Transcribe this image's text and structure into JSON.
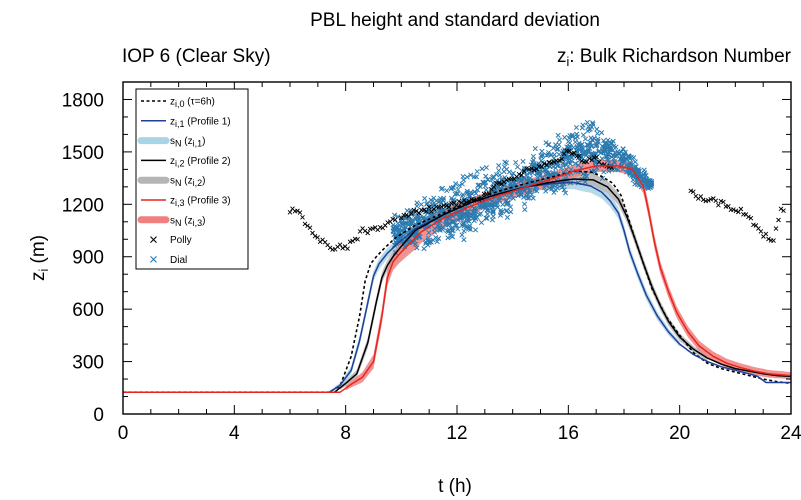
{
  "chart_data": {
    "type": "line",
    "title": "PBL height and standard deviation",
    "subtitle_left": "IOP 6 (Clear Sky)",
    "subtitle_right": {
      "symbol": "z",
      "sub": "i",
      "text": ": Bulk Richardson Number"
    },
    "xlabel": "t (h)",
    "ylabel": {
      "symbol": "z",
      "sub": "i",
      "unit": "(m)"
    },
    "xlim": [
      0,
      24
    ],
    "ylim": [
      0,
      1900
    ],
    "xticks": [
      0,
      4,
      8,
      12,
      16,
      20,
      24
    ],
    "yticks": [
      0,
      300,
      600,
      900,
      1200,
      1500,
      1800
    ],
    "legend_position": "top-left",
    "legend": [
      {
        "key": "zi0",
        "style": "dashed",
        "color": "#000000",
        "main": "z",
        "sub": "i,0",
        "paren": "(τ=6h)"
      },
      {
        "key": "zi1",
        "style": "line",
        "color": "#1f3f99",
        "main": "z",
        "sub": "i,1",
        "paren": "(Profile 1)"
      },
      {
        "key": "sn1",
        "style": "band",
        "color": "#a9d4e6",
        "main": "s",
        "sub": "N",
        "paren": "(z",
        "paren_sub": "i,1",
        "paren_end": ")"
      },
      {
        "key": "zi2",
        "style": "line",
        "color": "#000000",
        "main": "z",
        "sub": "i,2",
        "paren": "(Profile 2)"
      },
      {
        "key": "sn2",
        "style": "band",
        "color": "#b5b5b5",
        "main": "s",
        "sub": "N",
        "paren": "(z",
        "paren_sub": "i,2",
        "paren_end": ")"
      },
      {
        "key": "zi3",
        "style": "line",
        "color": "#e8251d",
        "main": "z",
        "sub": "i,3",
        "paren": "(Profile 3)"
      },
      {
        "key": "sn3",
        "style": "band",
        "color": "#f08080",
        "main": "s",
        "sub": "N",
        "paren": "(z",
        "paren_sub": "i,3",
        "paren_end": ")"
      },
      {
        "key": "polly",
        "style": "marker",
        "color": "#000000",
        "main": "Polly"
      },
      {
        "key": "dial",
        "style": "marker",
        "color": "#2a7ab0",
        "main": "Dial"
      }
    ],
    "series": [
      {
        "key": "zi0",
        "color": "#000000",
        "x": [
          0,
          7.4,
          7.8,
          8.2,
          8.5,
          8.7,
          8.9,
          9.1,
          9.4,
          9.8,
          10.5,
          11.5,
          12.5,
          13.5,
          14.5,
          15.5,
          16.2,
          16.8,
          17.2,
          17.6,
          17.9,
          18.1,
          18.4,
          18.7,
          19.0,
          19.5,
          20.0,
          20.5,
          21.0,
          21.5,
          22.0,
          22.5,
          23.0,
          23.5,
          24
        ],
        "y": [
          125,
          125,
          160,
          330,
          560,
          760,
          860,
          900,
          950,
          1010,
          1080,
          1150,
          1220,
          1275,
          1320,
          1360,
          1390,
          1385,
          1360,
          1320,
          1250,
          1150,
          1000,
          860,
          720,
          560,
          450,
          350,
          290,
          260,
          240,
          220,
          200,
          185,
          175
        ]
      },
      {
        "key": "zi1",
        "color": "#1f3f99",
        "x": [
          0,
          7.4,
          7.8,
          8.2,
          8.5,
          8.8,
          9.0,
          9.2,
          9.5,
          9.9,
          10.5,
          11.5,
          12.5,
          13.5,
          14.5,
          15.5,
          16.2,
          16.8,
          17.2,
          17.5,
          17.8,
          18.0,
          18.2,
          18.5,
          18.8,
          19.2,
          19.6,
          20.0,
          20.5,
          21.0,
          21.5,
          22.0,
          22.5,
          22.8,
          23.1,
          23.4,
          24
        ],
        "y": [
          125,
          125,
          165,
          250,
          420,
          640,
          790,
          860,
          920,
          980,
          1060,
          1140,
          1210,
          1260,
          1300,
          1320,
          1325,
          1305,
          1270,
          1220,
          1150,
          1050,
          930,
          800,
          680,
          560,
          470,
          400,
          340,
          300,
          270,
          250,
          230,
          215,
          180,
          180,
          180
        ]
      },
      {
        "key": "zi2",
        "color": "#000000",
        "x": [
          0,
          7.6,
          8.0,
          8.4,
          8.8,
          9.1,
          9.3,
          9.5,
          9.7,
          10.0,
          10.5,
          11.5,
          12.5,
          13.5,
          14.5,
          15.5,
          16.2,
          16.9,
          17.4,
          17.8,
          18.1,
          18.4,
          18.7,
          19.0,
          19.3,
          19.6,
          20.0,
          20.5,
          21.0,
          21.5,
          22.0,
          22.5,
          23.0,
          23.5,
          24
        ],
        "y": [
          125,
          125,
          175,
          230,
          410,
          640,
          780,
          850,
          900,
          960,
          1050,
          1140,
          1210,
          1260,
          1300,
          1330,
          1345,
          1340,
          1300,
          1230,
          1130,
          1000,
          860,
          730,
          620,
          530,
          440,
          370,
          320,
          285,
          260,
          245,
          230,
          220,
          215
        ]
      },
      {
        "key": "zi3",
        "color": "#e8251d",
        "x": [
          0,
          7.8,
          8.2,
          8.6,
          9.0,
          9.3,
          9.5,
          9.7,
          9.9,
          10.2,
          10.7,
          11.5,
          12.5,
          13.5,
          14.5,
          15.5,
          16.2,
          17.0,
          17.8,
          18.3,
          18.7,
          18.9,
          19.1,
          19.3,
          19.6,
          19.9,
          20.3,
          20.7,
          21.2,
          21.7,
          22.2,
          22.7,
          23.2,
          23.6,
          24
        ],
        "y": [
          125,
          125,
          170,
          210,
          300,
          560,
          780,
          870,
          910,
          960,
          1040,
          1120,
          1190,
          1250,
          1300,
          1350,
          1390,
          1420,
          1420,
          1400,
          1300,
          1150,
          980,
          840,
          700,
          580,
          470,
          390,
          330,
          290,
          265,
          245,
          230,
          225,
          220
        ]
      }
    ],
    "bands": [
      {
        "key": "sn1",
        "color": "#a9d4e6",
        "center": "zi1",
        "x": [
          7.6,
          8.5,
          9.5,
          11,
          13,
          15,
          16.5,
          17.5,
          18.2,
          19,
          20
        ],
        "half": [
          10,
          30,
          30,
          25,
          25,
          30,
          40,
          35,
          30,
          25,
          15
        ]
      },
      {
        "key": "sn2",
        "color": "#b5b5b5",
        "center": "zi2",
        "x": [
          7.8,
          8.8,
          9.7,
          11,
          13,
          15,
          16.5,
          17.6,
          18.5,
          19.5,
          21
        ],
        "half": [
          12,
          30,
          30,
          28,
          25,
          30,
          35,
          35,
          30,
          25,
          15
        ]
      },
      {
        "key": "sn3",
        "color": "#f08080",
        "center": "zi3",
        "x": [
          8.0,
          9.0,
          9.9,
          10.5,
          11.5,
          13,
          15,
          16.5,
          17.8,
          18.8,
          19.5,
          20.5,
          22,
          24
        ],
        "half": [
          12,
          40,
          50,
          65,
          55,
          45,
          40,
          35,
          35,
          40,
          35,
          30,
          25,
          20
        ]
      }
    ],
    "polly": {
      "color": "#000000",
      "segments": [
        {
          "x": [
            6.0,
            6.3,
            6.5,
            6.8,
            7.0,
            7.2,
            7.4,
            7.6,
            7.8,
            8.0,
            8.2,
            8.4,
            8.6,
            8.8,
            9.0,
            9.2,
            9.4,
            9.6,
            9.8
          ],
          "y": [
            1160,
            1160,
            1100,
            1050,
            1000,
            980,
            950,
            950,
            960,
            950,
            980,
            1000,
            1050,
            1050,
            1080,
            1060,
            1060,
            1100,
            1120
          ]
        },
        {
          "x": [
            10.0,
            10.5,
            11.0,
            11.5,
            12.0,
            12.5,
            13.0,
            13.3,
            13.6,
            14.0,
            14.3,
            14.6,
            15.0,
            15.3,
            15.6,
            16.0,
            16.3,
            16.6,
            17.0,
            17.3,
            17.6
          ],
          "y": [
            1130,
            1160,
            1170,
            1190,
            1200,
            1220,
            1250,
            1300,
            1330,
            1350,
            1380,
            1400,
            1410,
            1440,
            1450,
            1500,
            1480,
            1450,
            1460,
            1430,
            1420
          ]
        },
        {
          "x": [
            20.4,
            20.6,
            20.8,
            21.0,
            21.2,
            21.4,
            21.6,
            21.8,
            22.0,
            22.2,
            22.4,
            22.6,
            22.8,
            23.0,
            23.2,
            23.4,
            23.6,
            23.8
          ],
          "y": [
            1270,
            1250,
            1230,
            1210,
            1220,
            1200,
            1210,
            1180,
            1170,
            1160,
            1130,
            1100,
            1060,
            1030,
            1010,
            1000,
            1160,
            1160
          ]
        }
      ]
    },
    "dial": {
      "color": "#2a7ab0",
      "x_range": [
        9.7,
        19.0
      ],
      "envelope_x": [
        9.7,
        10.5,
        11.5,
        12.5,
        13.5,
        14.5,
        15.0,
        15.5,
        16.0,
        16.5,
        17.0,
        17.5,
        18.0,
        18.5,
        19.0
      ],
      "envelope_lo": [
        900,
        920,
        960,
        980,
        1100,
        1150,
        1250,
        1220,
        1250,
        1300,
        1350,
        1330,
        1380,
        1280,
        1280
      ],
      "envelope_hi": [
        1150,
        1230,
        1310,
        1400,
        1450,
        1480,
        1550,
        1600,
        1700,
        1720,
        1680,
        1600,
        1550,
        1450,
        1350
      ]
    }
  }
}
